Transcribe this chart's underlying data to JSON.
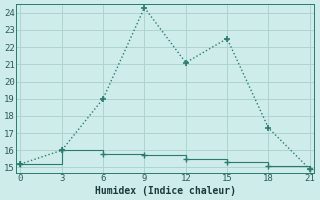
{
  "xlabel": "Humidex (Indice chaleur)",
  "bg_color": "#ceecea",
  "grid_color": "#aed4d0",
  "line_color": "#2a7a6e",
  "series1_x": [
    0,
    3,
    6,
    9,
    12,
    15,
    18,
    21
  ],
  "series1_y": [
    15.2,
    16.0,
    19.0,
    24.3,
    21.1,
    22.5,
    17.3,
    14.9
  ],
  "series2_x": [
    0,
    3,
    6,
    9,
    12,
    15,
    18,
    21
  ],
  "series2_y": [
    15.2,
    16.0,
    15.8,
    15.7,
    15.5,
    15.3,
    15.1,
    14.9
  ],
  "xlim": [
    -0.3,
    21.3
  ],
  "ylim": [
    14.7,
    24.5
  ],
  "xticks": [
    0,
    3,
    6,
    9,
    12,
    15,
    18,
    21
  ],
  "yticks": [
    15,
    16,
    17,
    18,
    19,
    20,
    21,
    22,
    23,
    24
  ]
}
